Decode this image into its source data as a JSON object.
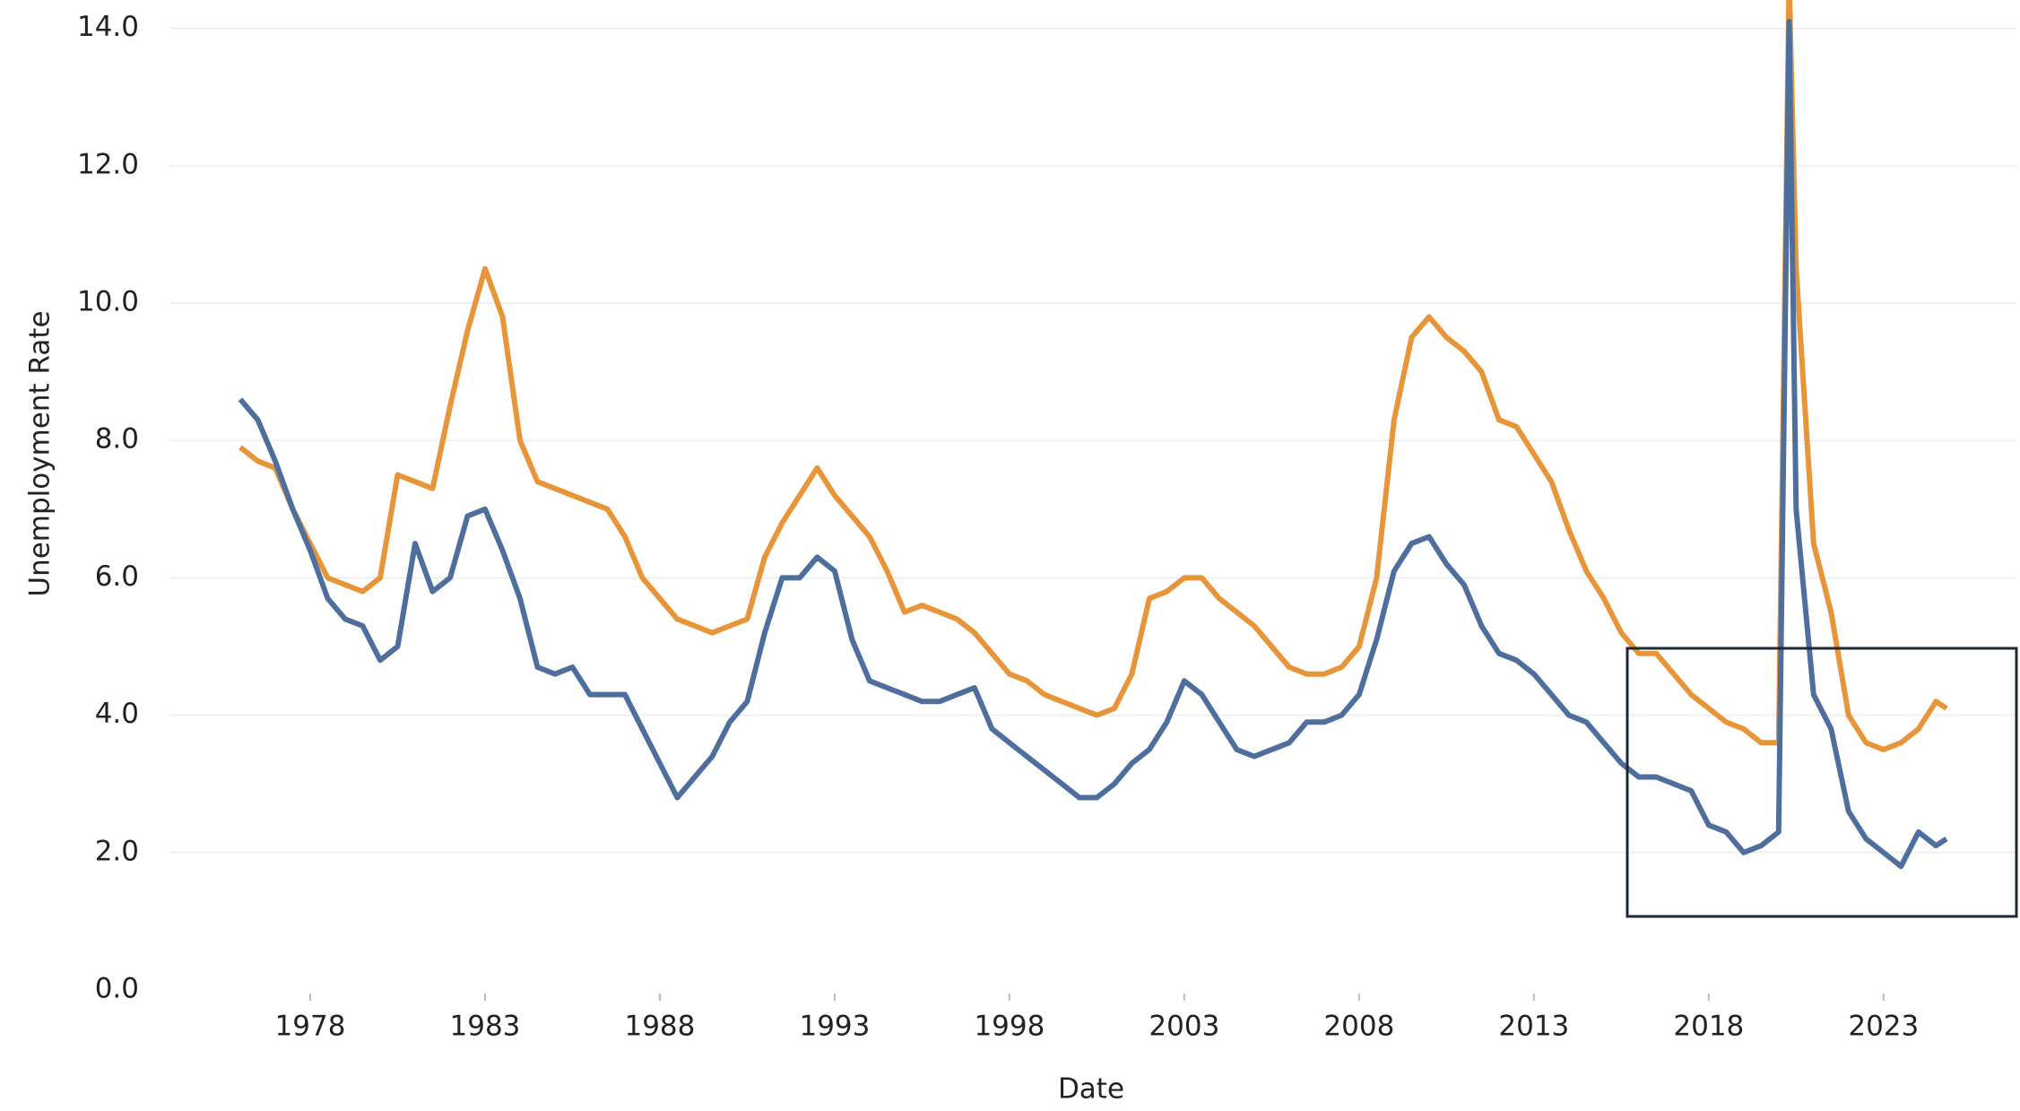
{
  "chart_data": {
    "type": "line",
    "x_label": "Date",
    "y_label": "Unemployment Rate",
    "x": [
      1976.0,
      1976.5,
      1977.0,
      1977.5,
      1978.0,
      1978.5,
      1979.0,
      1979.5,
      1980.0,
      1980.5,
      1981.0,
      1981.5,
      1982.0,
      1982.5,
      1983.0,
      1983.5,
      1984.0,
      1984.5,
      1985.0,
      1985.5,
      1986.0,
      1986.5,
      1987.0,
      1987.5,
      1988.0,
      1988.5,
      1989.0,
      1989.5,
      1990.0,
      1990.5,
      1991.0,
      1991.5,
      1992.0,
      1992.5,
      1993.0,
      1993.5,
      1994.0,
      1994.5,
      1995.0,
      1995.5,
      1996.0,
      1996.5,
      1997.0,
      1997.5,
      1998.0,
      1998.5,
      1999.0,
      1999.5,
      2000.0,
      2000.5,
      2001.0,
      2001.5,
      2002.0,
      2002.5,
      2003.0,
      2003.5,
      2004.0,
      2004.5,
      2005.0,
      2005.5,
      2006.0,
      2006.5,
      2007.0,
      2007.5,
      2008.0,
      2008.5,
      2009.0,
      2009.5,
      2010.0,
      2010.5,
      2011.0,
      2011.5,
      2012.0,
      2012.5,
      2013.0,
      2013.5,
      2014.0,
      2014.5,
      2015.0,
      2015.5,
      2016.0,
      2016.5,
      2017.0,
      2017.5,
      2018.0,
      2018.5,
      2019.0,
      2019.5,
      2020.0,
      2020.3,
      2020.5,
      2021.0,
      2021.5,
      2022.0,
      2022.5,
      2023.0,
      2023.5,
      2024.0,
      2024.5,
      2024.8
    ],
    "series": [
      {
        "color": "#e8953a",
        "values": [
          7.9,
          7.7,
          7.6,
          7.0,
          6.5,
          6.0,
          5.9,
          5.8,
          6.0,
          7.5,
          7.4,
          7.3,
          8.5,
          9.6,
          10.5,
          9.8,
          8.0,
          7.4,
          7.3,
          7.2,
          7.1,
          7.0,
          6.6,
          6.0,
          5.7,
          5.4,
          5.3,
          5.2,
          5.3,
          5.4,
          6.3,
          6.8,
          7.2,
          7.6,
          7.2,
          6.9,
          6.6,
          6.1,
          5.5,
          5.6,
          5.5,
          5.4,
          5.2,
          4.9,
          4.6,
          4.5,
          4.3,
          4.2,
          4.1,
          4.0,
          4.1,
          4.6,
          5.7,
          5.8,
          6.0,
          6.0,
          5.7,
          5.5,
          5.3,
          5.0,
          4.7,
          4.6,
          4.6,
          4.7,
          5.0,
          6.0,
          8.3,
          9.5,
          9.8,
          9.5,
          9.3,
          9.0,
          8.3,
          8.2,
          7.8,
          7.4,
          6.7,
          6.1,
          5.7,
          5.2,
          4.9,
          4.9,
          4.6,
          4.3,
          4.1,
          3.9,
          3.8,
          3.6,
          3.6,
          14.7,
          10.5,
          6.5,
          5.5,
          4.0,
          3.6,
          3.5,
          3.6,
          3.8,
          4.2,
          4.1
        ]
      },
      {
        "color": "#4e6f9e",
        "values": [
          8.6,
          8.3,
          7.7,
          7.0,
          6.4,
          5.7,
          5.4,
          5.3,
          4.8,
          5.0,
          6.5,
          5.8,
          6.0,
          6.9,
          7.0,
          6.4,
          5.7,
          4.7,
          4.6,
          4.7,
          4.3,
          4.3,
          4.3,
          3.8,
          3.3,
          2.8,
          3.1,
          3.4,
          3.9,
          4.2,
          5.2,
          6.0,
          6.0,
          6.3,
          6.1,
          5.1,
          4.5,
          4.4,
          4.3,
          4.2,
          4.2,
          4.3,
          4.4,
          3.8,
          3.6,
          3.4,
          3.2,
          3.0,
          2.8,
          2.8,
          3.0,
          3.3,
          3.5,
          3.9,
          4.5,
          4.3,
          3.9,
          3.5,
          3.4,
          3.5,
          3.6,
          3.9,
          3.9,
          4.0,
          4.3,
          5.1,
          6.1,
          6.5,
          6.6,
          6.2,
          5.9,
          5.3,
          4.9,
          4.8,
          4.6,
          4.3,
          4.0,
          3.9,
          3.6,
          3.3,
          3.1,
          3.1,
          3.0,
          2.9,
          2.4,
          2.3,
          2.0,
          2.1,
          2.3,
          14.1,
          7.0,
          4.3,
          3.8,
          2.6,
          2.2,
          2.0,
          1.8,
          2.3,
          2.1,
          2.2
        ]
      }
    ],
    "xlim": [
      1974,
      2026.8
    ],
    "xticks": [
      1978,
      1983,
      1988,
      1993,
      1998,
      2003,
      2008,
      2013,
      2018,
      2023
    ],
    "ylim": [
      0,
      14.4
    ],
    "yticks": [
      {
        "value": 0,
        "label": "0.0"
      },
      {
        "value": 2,
        "label": "2.0"
      },
      {
        "value": 4,
        "label": "4.0"
      },
      {
        "value": 6,
        "label": "6.0"
      },
      {
        "value": 8,
        "label": "8.0"
      },
      {
        "value": 10,
        "label": "10.0"
      },
      {
        "value": 12,
        "label": "12.0"
      },
      {
        "value": 14,
        "label": "14.0"
      }
    ],
    "grid": true
  }
}
